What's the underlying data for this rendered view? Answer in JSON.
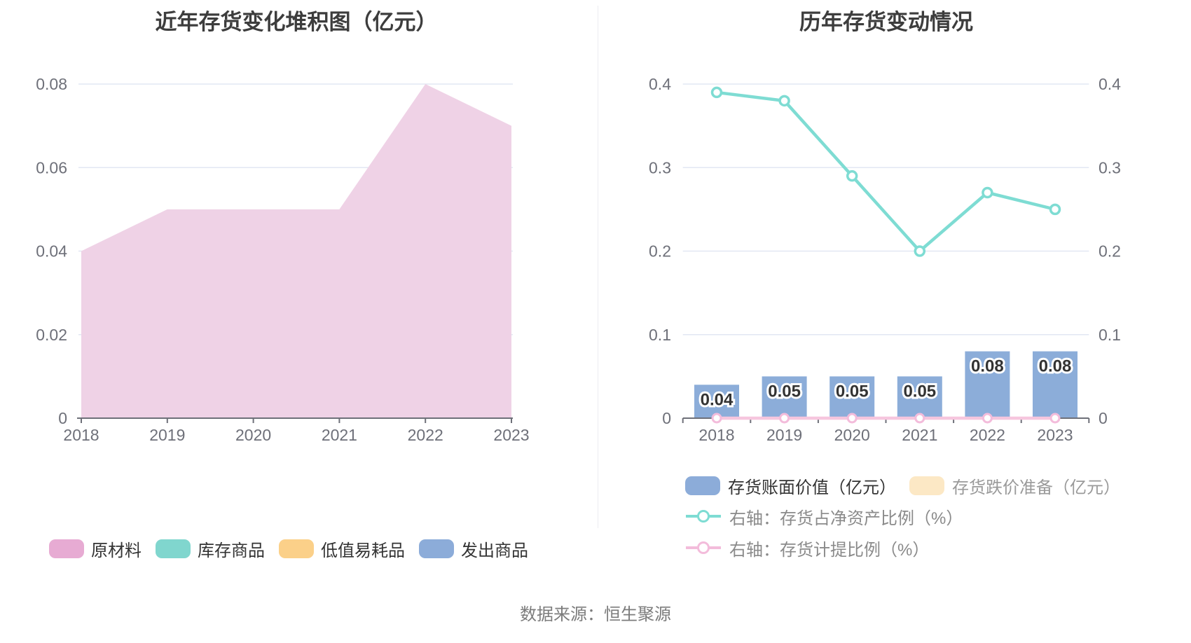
{
  "page": {
    "source_note": "数据来源：恒生聚源"
  },
  "left_chart": {
    "title": "近年存货变化堆积图（亿元）",
    "legend": [
      {
        "label": "原材料",
        "color": "#e7abd3"
      },
      {
        "label": "库存商品",
        "color": "#80d6ce"
      },
      {
        "label": "低值易耗品",
        "color": "#fbd089"
      },
      {
        "label": "发出商品",
        "color": "#8cacd9"
      }
    ]
  },
  "right_chart": {
    "title": "历年存货变动情况",
    "legend": [
      {
        "label": "存货账面价值（亿元）",
        "marker": "rect",
        "color": "#8cacd9"
      },
      {
        "label": "存货跌价准备（亿元）",
        "marker": "rect",
        "color": "#fce8c5"
      },
      {
        "label": "右轴：存货占净资产比例（%）",
        "marker": "line",
        "color": "#7edcd3"
      },
      {
        "label": "右轴：存货计提比例（%）",
        "marker": "line",
        "color": "#f3bcdb"
      }
    ]
  },
  "chart_data": [
    {
      "type": "area",
      "title": "近年存货变化堆积图（亿元）",
      "categories": [
        "2018",
        "2019",
        "2020",
        "2021",
        "2022",
        "2023"
      ],
      "series": [
        {
          "name": "原材料",
          "values": [
            0.04,
            0.05,
            0.05,
            0.05,
            0.08,
            0.07
          ]
        },
        {
          "name": "库存商品",
          "values": [
            0,
            0,
            0,
            0,
            0,
            0
          ]
        },
        {
          "name": "低值易耗品",
          "values": [
            0,
            0,
            0,
            0,
            0,
            0
          ]
        },
        {
          "name": "发出商品",
          "values": [
            0,
            0,
            0,
            0,
            0,
            0
          ]
        }
      ],
      "ylim": [
        0,
        0.08
      ],
      "yticks": [
        0,
        0.02,
        0.04,
        0.06,
        0.08
      ],
      "grid": true,
      "legend_position": "bottom"
    },
    {
      "type": "bar+line",
      "title": "历年存货变动情况",
      "categories": [
        "2018",
        "2019",
        "2020",
        "2021",
        "2022",
        "2023"
      ],
      "series": [
        {
          "name": "存货账面价值（亿元）",
          "kind": "bar",
          "axis": "left",
          "values": [
            0.04,
            0.05,
            0.05,
            0.05,
            0.08,
            0.08
          ],
          "labels": [
            "0.04",
            "0.05",
            "0.05",
            "0.05",
            "0.08",
            "0.08"
          ]
        },
        {
          "name": "存货跌价准备（亿元）",
          "kind": "bar",
          "axis": "left",
          "values": [
            0,
            0,
            0,
            0,
            0,
            0
          ]
        },
        {
          "name": "右轴：存货占净资产比例（%）",
          "kind": "line",
          "axis": "right",
          "values": [
            0.39,
            0.38,
            0.29,
            0.2,
            0.27,
            0.25
          ]
        },
        {
          "name": "右轴：存货计提比例（%）",
          "kind": "line",
          "axis": "right",
          "values": [
            0,
            0,
            0,
            0,
            0,
            0
          ]
        }
      ],
      "ylim_left": [
        0,
        0.4
      ],
      "ylim_right": [
        0,
        0.4
      ],
      "yticks": [
        0,
        0.1,
        0.2,
        0.3,
        0.4
      ],
      "grid": true,
      "legend_position": "bottom"
    }
  ],
  "colors": {
    "area_fill": "#efd2e6",
    "bar_blue": "#8cadd9",
    "line_teal": "#7edcd3",
    "line_pink": "#f3bcdb",
    "zero_line_pink": "#f6c6de",
    "gridline": "#e2e7f3",
    "axis": "#6e7079",
    "title_text": "#3d3d3d",
    "legend_text_dark": "#333333",
    "legend_text_muted": "#9a9a9a",
    "source_text": "#7c7c7c"
  }
}
